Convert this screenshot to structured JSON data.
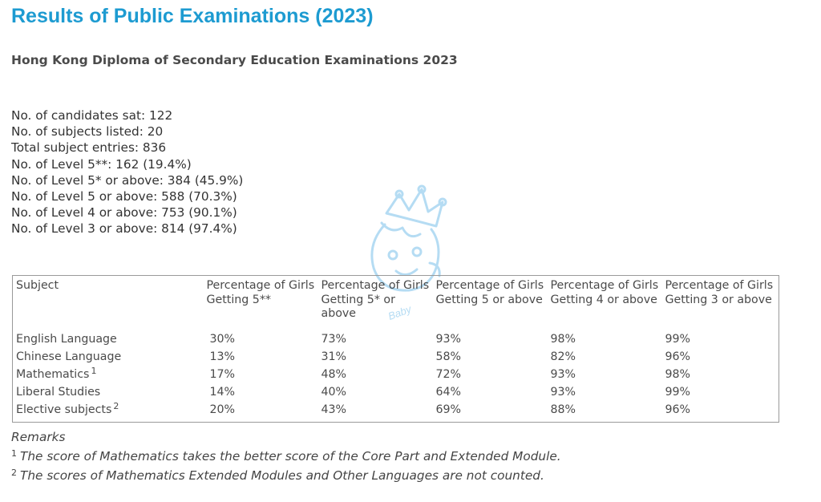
{
  "page": {
    "title": "Results of Public Examinations (2023)",
    "subtitle": "Hong Kong Diploma of Secondary Education Examinations 2023"
  },
  "stats": [
    "No. of candidates sat: 122",
    "No. of subjects listed: 20",
    "Total subject entries: 836",
    "No. of Level 5**: 162 (19.4%)",
    "No. of Level 5* or above: 384 (45.9%)",
    "No. of Level 5 or above: 588 (70.3%)",
    "No. of Level 4 or above: 753 (90.1%)",
    "No. of Level 3 or above: 814 (97.4%)"
  ],
  "table": {
    "headers": [
      "Subject",
      "Percentage of Girls Getting 5**",
      "Percentage of Girls Getting 5* or above",
      "Percentage of Girls Getting 5 or above",
      "Percentage of Girls Getting 4 or above",
      "Percentage of Girls Getting 3 or above"
    ],
    "rows": [
      {
        "subject": "English Language",
        "sup": "",
        "values": [
          "30%",
          "73%",
          "93%",
          "98%",
          "99%"
        ]
      },
      {
        "subject": "Chinese Language",
        "sup": "",
        "values": [
          "13%",
          "31%",
          "58%",
          "82%",
          "96%"
        ]
      },
      {
        "subject": "Mathematics",
        "sup": "1",
        "values": [
          "17%",
          "48%",
          "72%",
          "93%",
          "98%"
        ]
      },
      {
        "subject": "Liberal Studies",
        "sup": "",
        "values": [
          "14%",
          "40%",
          "64%",
          "93%",
          "99%"
        ]
      },
      {
        "subject": "Elective subjects",
        "sup": "2",
        "values": [
          "20%",
          "43%",
          "69%",
          "88%",
          "96%"
        ]
      }
    ]
  },
  "remarks": {
    "heading": "Remarks",
    "notes": [
      {
        "num": "1",
        "text": "The score of Mathematics takes the better score of the Core Part and Extended Module."
      },
      {
        "num": "2",
        "text": "The scores of Mathematics Extended Modules and Other Languages are not counted."
      }
    ]
  },
  "watermark": {
    "text": "Baby",
    "icon": "baby-face-crown-logo"
  },
  "colors": {
    "title": "#1d9bd1",
    "watermark": "#a9d6f2",
    "border": "#9a9a9a"
  }
}
